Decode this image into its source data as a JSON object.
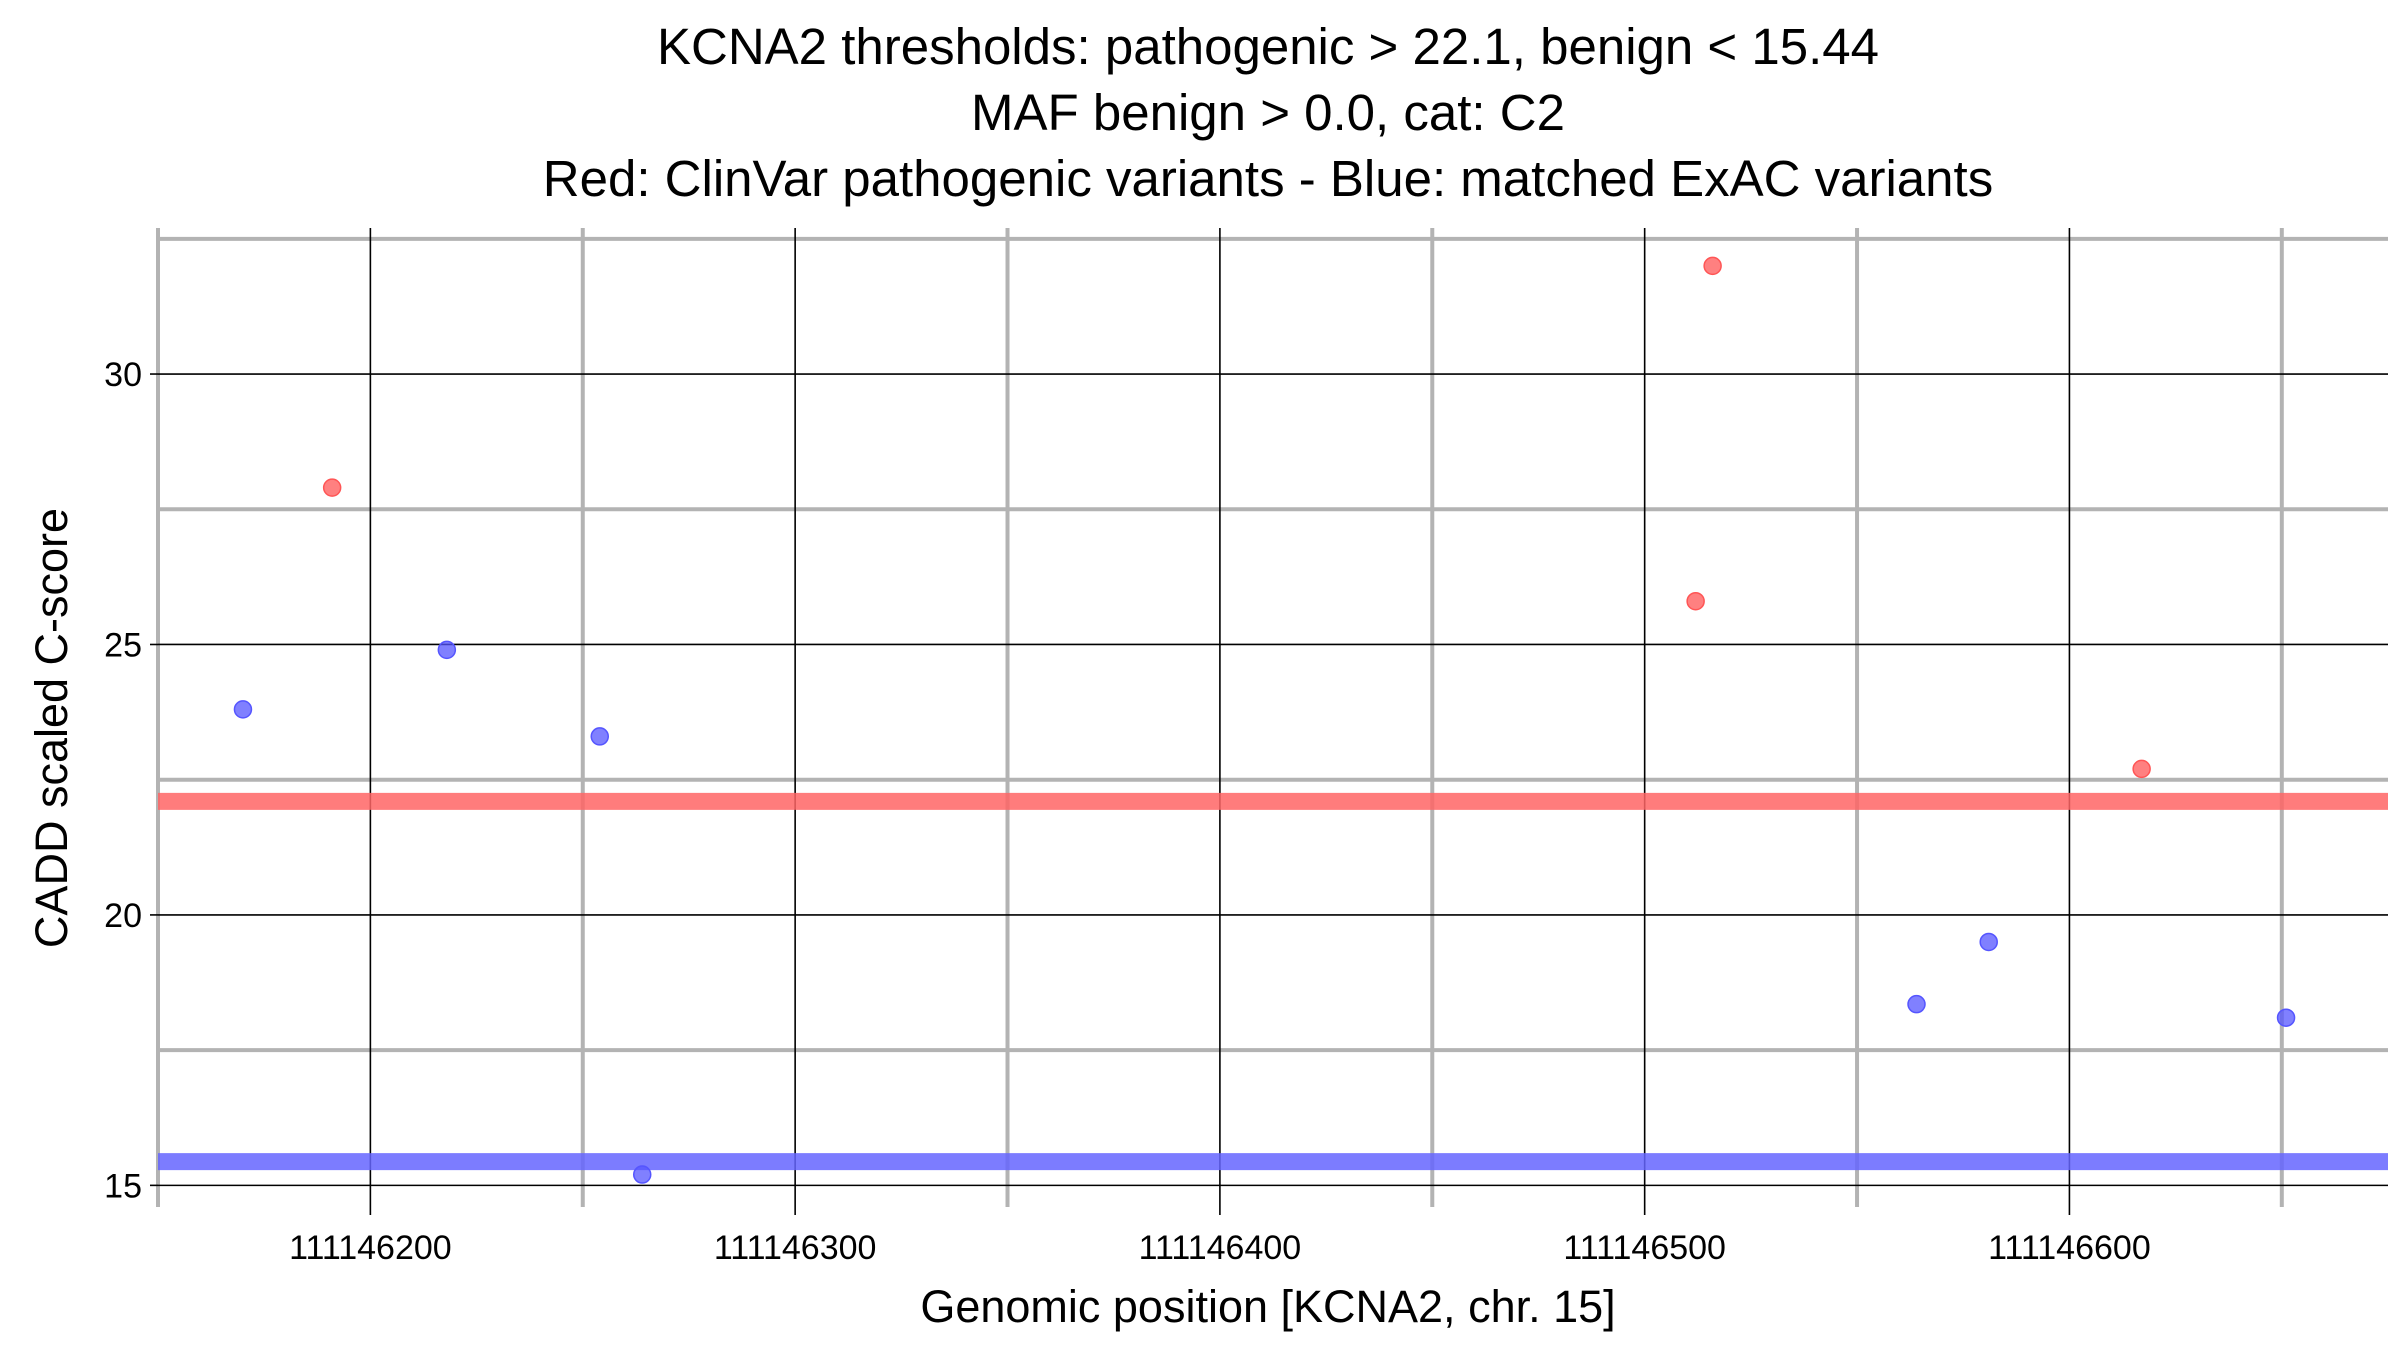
{
  "chart_data": {
    "type": "scatter",
    "title_lines": [
      "KCNA2 thresholds: pathogenic > 22.1, benign < 15.44",
      "MAF benign > 0.0, cat: C2",
      "Red: ClinVar pathogenic variants - Blue: matched ExAC variants"
    ],
    "xlabel": "Genomic position [KCNA2, chr. 15]",
    "ylabel": "CADD scaled C-score",
    "xlim": [
      111146150,
      111146675
    ],
    "ylim": [
      14.6,
      32.7
    ],
    "x_ticks": [
      111146200,
      111146300,
      111146400,
      111146500,
      111146600
    ],
    "x_tick_labels": [
      "111146200",
      "111146300",
      "111146400",
      "111146500",
      "111146600"
    ],
    "x_minor_ticks": [
      111146150,
      111146250,
      111146350,
      111146450,
      111146550,
      111146650
    ],
    "y_ticks": [
      15,
      20,
      25,
      30
    ],
    "y_tick_labels": [
      "15",
      "20",
      "25",
      "30"
    ],
    "y_minor_ticks": [
      17.5,
      22.5,
      27.5,
      32.5
    ],
    "grid": true,
    "thresholds": [
      {
        "value": 22.1,
        "color": "#ff6666"
      },
      {
        "value": 15.44,
        "color": "#6666ff"
      }
    ],
    "series": [
      {
        "color": "#ff5555",
        "points": [
          {
            "x": 111146191,
            "y": 27.9
          },
          {
            "x": 111146512,
            "y": 25.8
          },
          {
            "x": 111146516,
            "y": 32.0
          },
          {
            "x": 111146617,
            "y": 22.7
          }
        ]
      },
      {
        "color": "#5555ff",
        "points": [
          {
            "x": 111146170,
            "y": 23.8
          },
          {
            "x": 111146218,
            "y": 24.9
          },
          {
            "x": 111146254,
            "y": 23.3
          },
          {
            "x": 111146264,
            "y": 15.2
          },
          {
            "x": 111146564,
            "y": 18.35
          },
          {
            "x": 111146581,
            "y": 19.5
          },
          {
            "x": 111146651,
            "y": 18.1
          }
        ]
      }
    ]
  }
}
